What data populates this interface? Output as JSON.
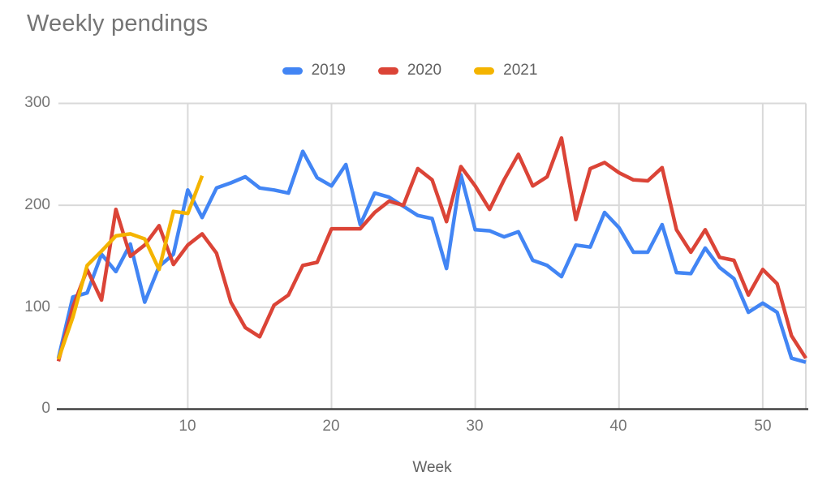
{
  "title": "Weekly pendings",
  "chart_data": {
    "type": "line",
    "title": "Weekly pendings",
    "xlabel": "Week",
    "ylabel": "",
    "x_ticks": [
      10,
      20,
      30,
      40,
      50
    ],
    "y_ticks": [
      0,
      100,
      200,
      300
    ],
    "xlim": [
      1,
      53
    ],
    "ylim": [
      0,
      300
    ],
    "grid": true,
    "legend_position": "top-center",
    "axis_color": "#424242",
    "grid_color": "#D9D9D9",
    "text_color": "#757575",
    "series": [
      {
        "name": "2019",
        "color": "#4285F4",
        "start_week": 1,
        "values": [
          50,
          110,
          114,
          152,
          135,
          162,
          105,
          140,
          152,
          215,
          188,
          217,
          222,
          228,
          217,
          215,
          212,
          253,
          227,
          219,
          240,
          181,
          212,
          208,
          199,
          190,
          187,
          138,
          230,
          176,
          175,
          169,
          174,
          146,
          141,
          130,
          161,
          159,
          193,
          178,
          154,
          154,
          181,
          134,
          133,
          158,
          139,
          128,
          95,
          104,
          95,
          50,
          46
        ]
      },
      {
        "name": "2020",
        "color": "#DB4437",
        "start_week": 1,
        "values": [
          47,
          100,
          137,
          107,
          196,
          150,
          161,
          180,
          142,
          161,
          172,
          153,
          105,
          80,
          71,
          102,
          112,
          141,
          144,
          177,
          177,
          177,
          193,
          204,
          200,
          236,
          225,
          184,
          238,
          219,
          196,
          225,
          250,
          219,
          228,
          266,
          186,
          236,
          242,
          232,
          225,
          224,
          237,
          176,
          154,
          176,
          149,
          146,
          112,
          137,
          123,
          72,
          50
        ]
      },
      {
        "name": "2021",
        "color": "#F4B400",
        "start_week": 1,
        "values": [
          49,
          90,
          141,
          155,
          170,
          172,
          167,
          137,
          194,
          192,
          229
        ]
      }
    ]
  }
}
